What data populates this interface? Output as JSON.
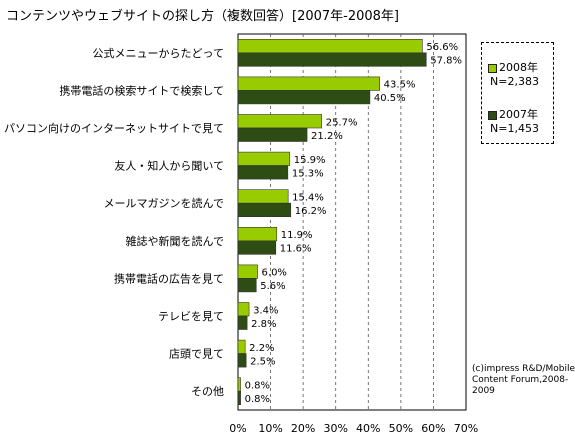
{
  "title": "コンテンツやウェブサイトの探し方（複数回答）[2007年-2008年]",
  "chart_data": {
    "type": "bar",
    "orientation": "horizontal",
    "categories": [
      "公式メニューからたどって",
      "携帯電話の検索サイトで検索して",
      "パソコン向けのインターネットサイトで見て",
      "友人・知人から聞いて",
      "メールマガジンを読んで",
      "雑誌や新聞を読んで",
      "携帯電話の広告を見て",
      "テレビを見て",
      "店頭で見て",
      "その他"
    ],
    "series": [
      {
        "name": "2008年",
        "sub": "N=2,383",
        "color": "#99cc00",
        "values": [
          56.6,
          43.5,
          25.7,
          15.9,
          15.4,
          11.9,
          6.0,
          3.4,
          2.2,
          0.8
        ]
      },
      {
        "name": "2007年",
        "sub": "N=1,453",
        "color": "#2d4d14",
        "values": [
          57.8,
          40.5,
          21.2,
          15.3,
          16.2,
          11.6,
          5.6,
          2.8,
          2.5,
          0.8
        ]
      }
    ],
    "xlim": [
      0,
      70
    ],
    "xticks": [
      0,
      10,
      20,
      30,
      40,
      50,
      60,
      70
    ],
    "tick_suffix": "%",
    "grid": "vertical-dashed",
    "legend_position": "right"
  },
  "source_lines": [
    "(c)impress R&D/Mobile",
    "Content Forum,2008-",
    "2009"
  ]
}
